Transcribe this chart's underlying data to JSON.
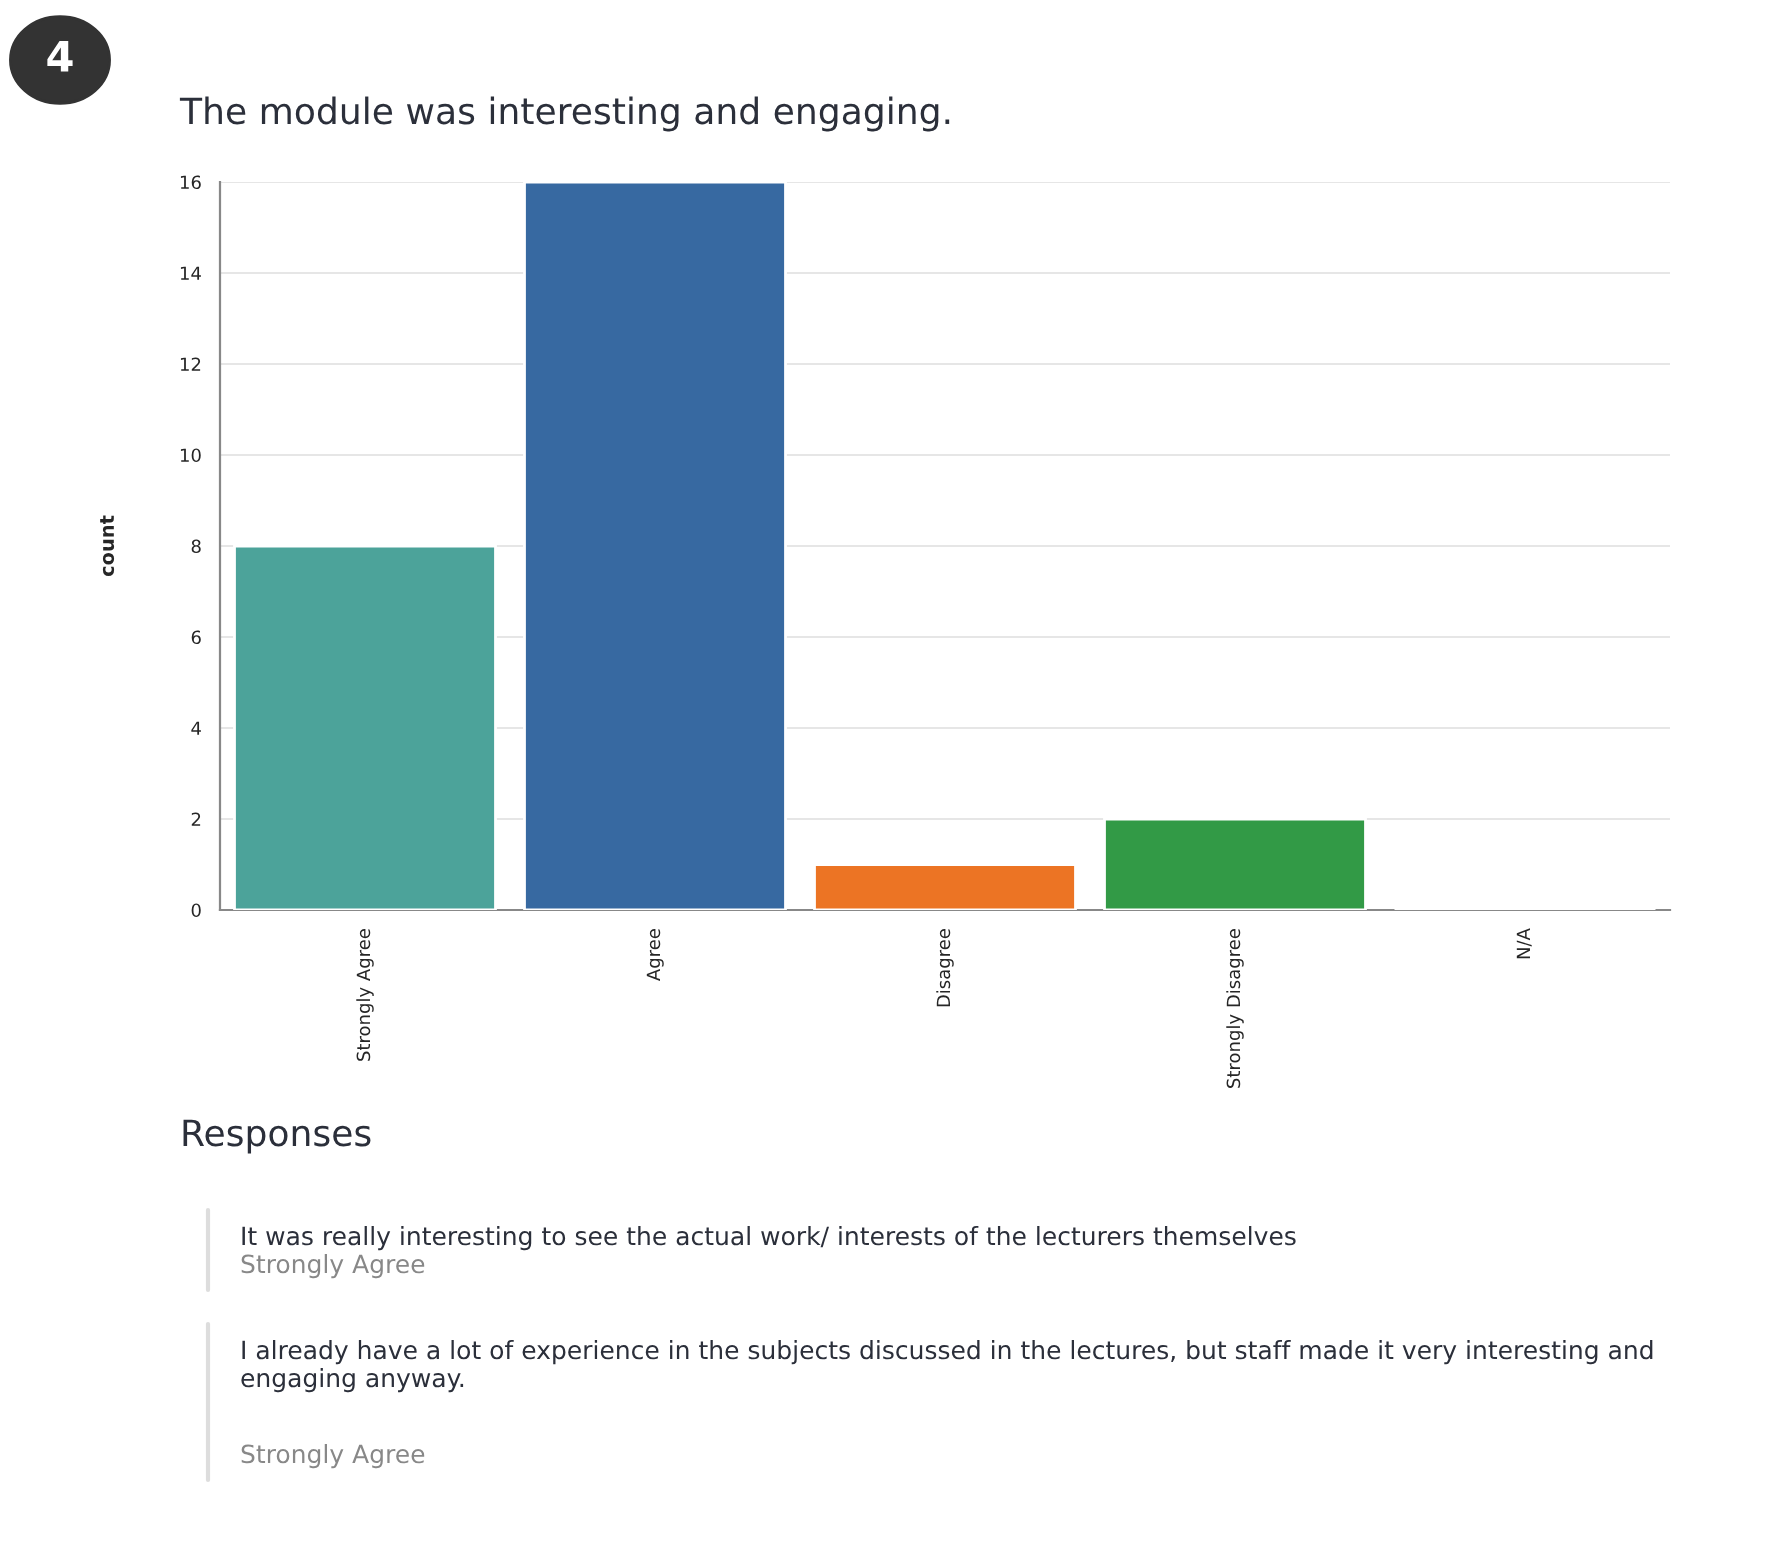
{
  "chart_data": {
    "type": "bar",
    "title": "The module was interesting and engaging.",
    "ylabel": "count",
    "categories": [
      "Strongly Agree",
      "Agree",
      "Disagree",
      "Strongly Disagree",
      "N/A"
    ],
    "values": [
      8,
      16,
      1,
      2,
      0
    ],
    "colors": [
      "#4ca39a",
      "#3769a1",
      "#ec7424",
      "#329a46",
      null
    ],
    "ylim": [
      0,
      16
    ],
    "yticks": [
      0,
      2,
      4,
      6,
      8,
      10,
      12,
      14,
      16
    ],
    "grid": "y",
    "annotations": [
      "4",
      "Responses",
      "It was really interesting to see the actual work/ interests of the lecturers themselves",
      "Strongly Agree",
      "I already have a lot of experience in the subjects discussed in the lectures, but staff made it very interesting and engaging anyway.",
      "Strongly Agree"
    ]
  }
}
